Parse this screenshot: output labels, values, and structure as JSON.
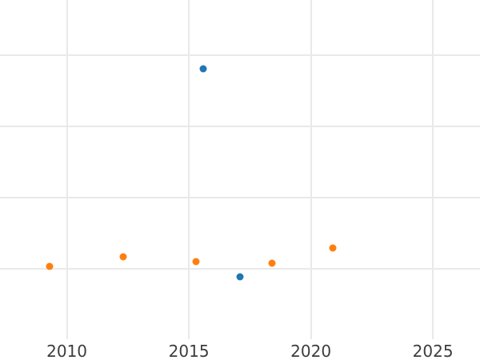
{
  "chart": {
    "x_tick_labels": [
      "2010",
      "2015",
      "2020",
      "2025"
    ],
    "y_tick_labels": []
  },
  "chart_data": {
    "type": "scatter",
    "title": "",
    "xlabel": "",
    "ylabel": "",
    "x_ticks": [
      2010,
      2015,
      2020,
      2025
    ],
    "y_ticks": [
      1,
      2,
      3,
      4
    ],
    "y_axis": "unlabeled (values in gridline units, bottom edge = 0, one gridline = 1)",
    "x_range": [
      2007.26,
      2026.93
    ],
    "y_range": [
      0,
      4.78
    ],
    "grid": true,
    "legend_position": "none",
    "series": [
      {
        "name": "blue",
        "color": "#1f77b4",
        "points": [
          {
            "x": 2015.6,
            "y": 3.81
          },
          {
            "x": 2017.1,
            "y": 0.89
          }
        ]
      },
      {
        "name": "orange",
        "color": "#ff7f0e",
        "points": [
          {
            "x": 2009.3,
            "y": 1.04
          },
          {
            "x": 2012.3,
            "y": 1.17
          },
          {
            "x": 2015.3,
            "y": 1.11
          },
          {
            "x": 2018.4,
            "y": 1.08
          },
          {
            "x": 2020.9,
            "y": 1.3
          }
        ]
      }
    ],
    "colors": {
      "background": "#ffffff",
      "gridline": "#e9e9e9",
      "tick_label": "#3d3d3d"
    }
  }
}
